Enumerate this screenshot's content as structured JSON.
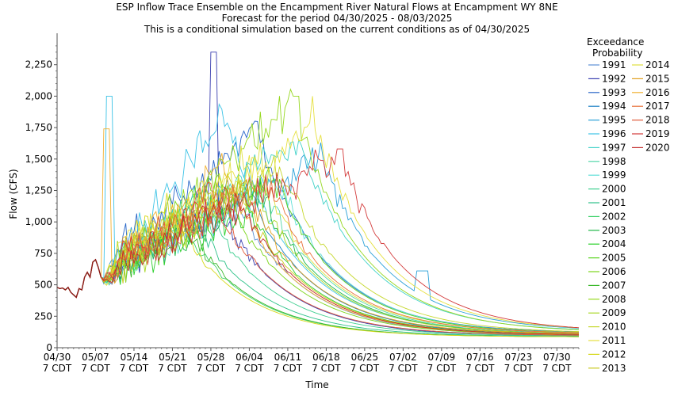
{
  "chart_data": {
    "type": "line",
    "title_lines": [
      "ESP Inflow Trace Ensemble on the Encampment River Natural Flows at Encampment WY 8NE",
      "Forecast for the period 04/30/2025 - 08/03/2025",
      "This is a conditional simulation based on the current conditions as of 04/30/2025"
    ],
    "xlabel": "Time",
    "ylabel": "Flow (CFS)",
    "ylim": [
      0,
      2500
    ],
    "xlim_days": [
      0,
      95
    ],
    "yticks": [
      0,
      250,
      500,
      750,
      1000,
      1250,
      1500,
      1750,
      2000,
      2250
    ],
    "ytick_labels": [
      "0",
      "250",
      "500",
      "750",
      "1,000",
      "1,250",
      "1,500",
      "1,750",
      "2,000",
      "2,250"
    ],
    "xticks": [
      {
        "day": 0,
        "date": "04/30",
        "tz": "7 CDT"
      },
      {
        "day": 7,
        "date": "05/07",
        "tz": "7 CDT"
      },
      {
        "day": 14,
        "date": "05/14",
        "tz": "7 CDT"
      },
      {
        "day": 21,
        "date": "05/21",
        "tz": "7 CDT"
      },
      {
        "day": 28,
        "date": "05/28",
        "tz": "7 CDT"
      },
      {
        "day": 35,
        "date": "06/04",
        "tz": "7 CDT"
      },
      {
        "day": 42,
        "date": "06/11",
        "tz": "7 CDT"
      },
      {
        "day": 49,
        "date": "06/18",
        "tz": "7 CDT"
      },
      {
        "day": 56,
        "date": "06/25",
        "tz": "7 CDT"
      },
      {
        "day": 63,
        "date": "07/02",
        "tz": "7 CDT"
      },
      {
        "day": 70,
        "date": "07/09",
        "tz": "7 CDT"
      },
      {
        "day": 77,
        "date": "07/16",
        "tz": "7 CDT"
      },
      {
        "day": 84,
        "date": "07/23",
        "tz": "7 CDT"
      },
      {
        "day": 91,
        "date": "07/30",
        "tz": "7 CDT"
      }
    ],
    "legend_title": [
      "Exceedance",
      "Probability"
    ],
    "legend_placement": "right",
    "grid": false,
    "observed": [
      [
        0,
        480
      ],
      [
        0.5,
        470
      ],
      [
        1,
        475
      ],
      [
        1.5,
        460
      ],
      [
        2,
        480
      ],
      [
        2.5,
        440
      ],
      [
        3,
        420
      ],
      [
        3.5,
        400
      ],
      [
        4,
        470
      ],
      [
        4.5,
        460
      ],
      [
        5,
        560
      ],
      [
        5.5,
        600
      ],
      [
        6,
        560
      ],
      [
        6.5,
        680
      ],
      [
        7,
        700
      ],
      [
        7.5,
        640
      ],
      [
        8,
        560
      ]
    ],
    "series": [
      {
        "name": "1991",
        "color": "#5b8fd6",
        "peak_day": 33,
        "peak": 1150,
        "trough": 600,
        "recess_base": 95,
        "noise": 240
      },
      {
        "name": "1992",
        "color": "#3a3fb0",
        "peak_day": 29,
        "peak": 1150,
        "trough": 560,
        "recess_base": 90,
        "noise": 200
      },
      {
        "name": "1993",
        "color": "#2866c8",
        "peak_day": 36,
        "peak": 1800,
        "trough": 700,
        "recess_base": 115,
        "noise": 280
      },
      {
        "name": "1994",
        "color": "#1a7fc4",
        "peak_day": 34,
        "peak": 1300,
        "trough": 620,
        "recess_base": 100,
        "noise": 220
      },
      {
        "name": "1995",
        "color": "#2aa0d8",
        "peak_day": 48,
        "peak": 1500,
        "trough": 700,
        "recess_base": 130,
        "noise": 260
      },
      {
        "name": "1996",
        "color": "#3cc3e6",
        "peak_day": 31,
        "peak": 1850,
        "trough": 650,
        "recess_base": 110,
        "noise": 300
      },
      {
        "name": "1997",
        "color": "#41d2c8",
        "peak_day": 44,
        "peak": 1700,
        "trough": 700,
        "recess_base": 125,
        "noise": 260
      },
      {
        "name": "1998",
        "color": "#52d6a8",
        "peak_day": 38,
        "peak": 1250,
        "trough": 620,
        "recess_base": 105,
        "noise": 220
      },
      {
        "name": "1999",
        "color": "#60e0d8",
        "peak_day": 40,
        "peak": 1350,
        "trough": 640,
        "recess_base": 110,
        "noise": 230
      },
      {
        "name": "2000",
        "color": "#3fcf90",
        "peak_day": 26,
        "peak": 1200,
        "trough": 580,
        "recess_base": 92,
        "noise": 220
      },
      {
        "name": "2001",
        "color": "#2ec28a",
        "peak_day": 24,
        "peak": 1100,
        "trough": 560,
        "recess_base": 88,
        "noise": 200
      },
      {
        "name": "2002",
        "color": "#3fd26b",
        "peak_day": 22,
        "peak": 1050,
        "trough": 540,
        "recess_base": 85,
        "noise": 200
      },
      {
        "name": "2003",
        "color": "#20b848",
        "peak_day": 37,
        "peak": 1250,
        "trough": 620,
        "recess_base": 105,
        "noise": 220
      },
      {
        "name": "2004",
        "color": "#2bd02b",
        "peak_day": 35,
        "peak": 1100,
        "trough": 600,
        "recess_base": 100,
        "noise": 210
      },
      {
        "name": "2005",
        "color": "#55d41a",
        "peak_day": 39,
        "peak": 1400,
        "trough": 640,
        "recess_base": 110,
        "noise": 240
      },
      {
        "name": "2006",
        "color": "#7bd61a",
        "peak_day": 30,
        "peak": 1300,
        "trough": 600,
        "recess_base": 100,
        "noise": 240
      },
      {
        "name": "2007",
        "color": "#3ab82a",
        "peak_day": 23,
        "peak": 1000,
        "trough": 540,
        "recess_base": 85,
        "noise": 200
      },
      {
        "name": "2008",
        "color": "#96d820",
        "peak_day": 43,
        "peak": 1950,
        "trough": 720,
        "recess_base": 120,
        "noise": 280
      },
      {
        "name": "2009",
        "color": "#aad82a",
        "peak_day": 36,
        "peak": 1300,
        "trough": 620,
        "recess_base": 105,
        "noise": 230
      },
      {
        "name": "2010",
        "color": "#c6d82e",
        "peak_day": 41,
        "peak": 1450,
        "trough": 660,
        "recess_base": 115,
        "noise": 240
      },
      {
        "name": "2011",
        "color": "#e6e040",
        "peak_day": 47,
        "peak": 1800,
        "trough": 720,
        "recess_base": 130,
        "noise": 280
      },
      {
        "name": "2012",
        "color": "#d6d81a",
        "peak_day": 20,
        "peak": 1150,
        "trough": 560,
        "recess_base": 85,
        "noise": 220
      },
      {
        "name": "2013",
        "color": "#c8c81a",
        "peak_day": 32,
        "peak": 1350,
        "trough": 600,
        "recess_base": 100,
        "noise": 240
      },
      {
        "name": "2014",
        "color": "#e0e040",
        "peak_day": 36,
        "peak": 1500,
        "trough": 660,
        "recess_base": 112,
        "noise": 250
      },
      {
        "name": "2015",
        "color": "#e0a020",
        "peak_day": 34,
        "peak": 1300,
        "trough": 620,
        "recess_base": 105,
        "noise": 230
      },
      {
        "name": "2016",
        "color": "#f0b030",
        "peak_day": 30,
        "peak": 1450,
        "trough": 620,
        "recess_base": 100,
        "noise": 250
      },
      {
        "name": "2017",
        "color": "#e8703a",
        "peak_day": 38,
        "peak": 1350,
        "trough": 640,
        "recess_base": 110,
        "noise": 240
      },
      {
        "name": "2018",
        "color": "#e05a3a",
        "peak_day": 28,
        "peak": 1250,
        "trough": 600,
        "recess_base": 95,
        "noise": 230
      },
      {
        "name": "2019",
        "color": "#d33a3a",
        "peak_day": 51,
        "peak": 1550,
        "trough": 700,
        "recess_base": 125,
        "noise": 260
      },
      {
        "name": "2020",
        "color": "#c22a2a",
        "peak_day": 33,
        "peak": 1200,
        "trough": 600,
        "recess_base": 100,
        "noise": 220
      }
    ]
  }
}
